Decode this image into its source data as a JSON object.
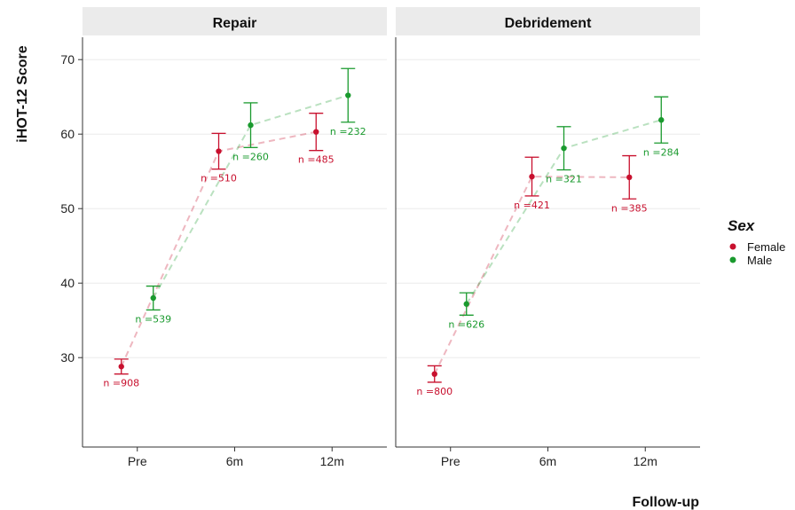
{
  "chart_data": {
    "type": "scatter",
    "ylabel": "iHOT-12 Score",
    "xlabel": "Follow-up",
    "categories": [
      "Pre",
      "6m",
      "12m"
    ],
    "yticks": [
      30,
      40,
      50,
      60,
      70
    ],
    "ylim": [
      18,
      73
    ],
    "grid": "horizontal",
    "legend": {
      "title": "Sex",
      "placement": "right",
      "entries": [
        {
          "name": "Female",
          "color": "#c8102e"
        },
        {
          "name": "Male",
          "color": "#1a9a2e"
        }
      ]
    },
    "panels": [
      {
        "title": "Repair",
        "series": [
          {
            "name": "Female",
            "color": "#c8102e",
            "points": [
              {
                "x": "Pre",
                "y": 28.8,
                "low": 27.8,
                "high": 29.8,
                "n": "n =908"
              },
              {
                "x": "6m",
                "y": 57.7,
                "low": 55.3,
                "high": 60.1,
                "n": "n =510"
              },
              {
                "x": "12m",
                "y": 60.3,
                "low": 57.8,
                "high": 62.8,
                "n": "n =485"
              }
            ]
          },
          {
            "name": "Male",
            "color": "#1a9a2e",
            "points": [
              {
                "x": "Pre",
                "y": 38.0,
                "low": 36.4,
                "high": 39.6,
                "n": "n =539"
              },
              {
                "x": "6m",
                "y": 61.2,
                "low": 58.2,
                "high": 64.2,
                "n": "n =260"
              },
              {
                "x": "12m",
                "y": 65.2,
                "low": 61.6,
                "high": 68.8,
                "n": "n =232"
              }
            ]
          }
        ]
      },
      {
        "title": "Debridement",
        "series": [
          {
            "name": "Female",
            "color": "#c8102e",
            "points": [
              {
                "x": "Pre",
                "y": 27.8,
                "low": 26.7,
                "high": 28.9,
                "n": "n =800"
              },
              {
                "x": "6m",
                "y": 54.3,
                "low": 51.7,
                "high": 56.9,
                "n": "n =421"
              },
              {
                "x": "12m",
                "y": 54.2,
                "low": 51.3,
                "high": 57.1,
                "n": "n =385"
              }
            ]
          },
          {
            "name": "Male",
            "color": "#1a9a2e",
            "points": [
              {
                "x": "Pre",
                "y": 37.2,
                "low": 35.7,
                "high": 38.7,
                "n": "n =626"
              },
              {
                "x": "6m",
                "y": 58.1,
                "low": 55.2,
                "high": 61.0,
                "n": "n =321"
              },
              {
                "x": "12m",
                "y": 61.9,
                "low": 58.8,
                "high": 65.0,
                "n": "n =284"
              }
            ]
          }
        ]
      }
    ]
  }
}
